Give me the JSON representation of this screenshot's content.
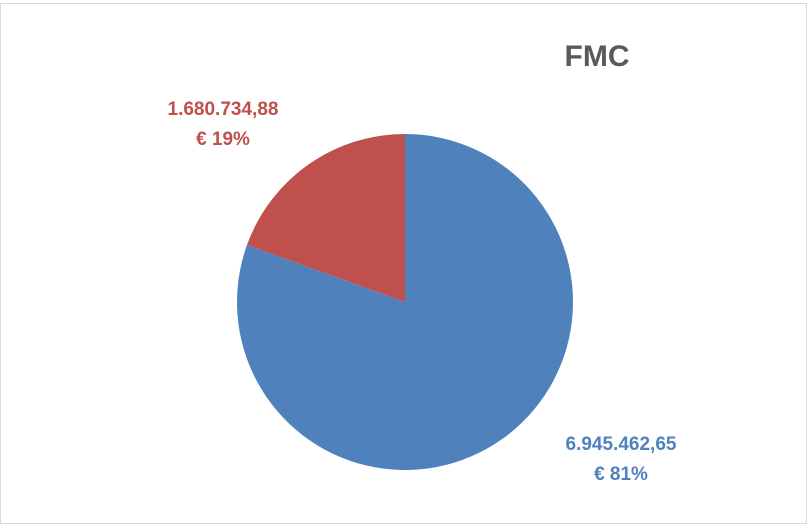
{
  "chart_data": {
    "type": "pie",
    "title": "FMC",
    "values": [
      6945462.65,
      1680734.88
    ],
    "value_labels": [
      [
        "6.945.462,65",
        "€ 81%"
      ],
      [
        "1.680.734,88",
        "€ 19%"
      ]
    ],
    "colors": [
      "#4f81bd",
      "#c0504d"
    ]
  }
}
